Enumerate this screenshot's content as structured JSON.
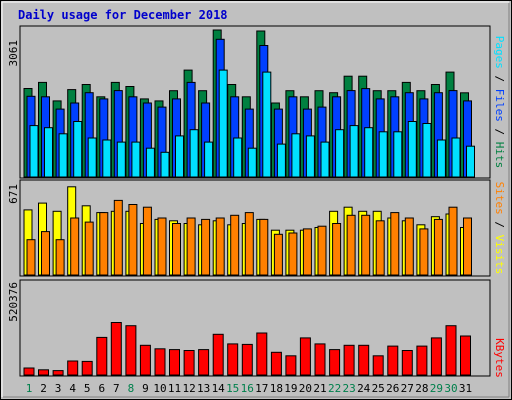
{
  "chart_data": {
    "type": "bar",
    "title": "Daily usage for December 2018",
    "categories": [
      "1",
      "2",
      "3",
      "4",
      "5",
      "6",
      "7",
      "8",
      "9",
      "10",
      "11",
      "12",
      "13",
      "14",
      "15",
      "16",
      "17",
      "18",
      "19",
      "20",
      "21",
      "22",
      "23",
      "24",
      "25",
      "26",
      "27",
      "28",
      "29",
      "30",
      "31"
    ],
    "weekend_days": [
      1,
      8,
      15,
      16,
      22,
      23,
      29,
      30
    ],
    "colors": {
      "hits": "#008040",
      "files": "#0040ff",
      "pages": "#00e0ff",
      "visits": "#ffff00",
      "sites": "#ff8000",
      "kbytes": "#ff0000",
      "title": "#0000cc",
      "weekday_label": "#000000",
      "weekend_label": "#00804c",
      "panel_bg": "#c0c0c0"
    },
    "panels": [
      {
        "id": "hits-files-pages",
        "ymax_label": "3061",
        "ylim": [
          0,
          3061
        ],
        "right_label": [
          {
            "text": "Pages",
            "color": "#00e0ff"
          },
          {
            "text": " / ",
            "color": "#000000"
          },
          {
            "text": "Files",
            "color": "#0040ff"
          },
          {
            "text": " / ",
            "color": "#000000"
          },
          {
            "text": "Hits",
            "color": "#008040"
          }
        ],
        "series": [
          {
            "name": "Hits",
            "color": "#008040",
            "values": [
              1843,
              1970,
              1584,
              1820,
              1927,
              1669,
              1970,
              1884,
              1627,
              1584,
              1798,
              2226,
              1798,
              3061,
              1926,
              1670,
              3040,
              1541,
              1798,
              1670,
              1798,
              1756,
              2098,
              2098,
              1798,
              1798,
              1970,
              1798,
              1927,
              2184,
              1754
            ]
          },
          {
            "name": "Files",
            "color": "#0040ff",
            "values": [
              1680,
              1670,
              1413,
              1541,
              1756,
              1627,
              1799,
              1669,
              1541,
              1456,
              1627,
              1970,
              1541,
              2868,
              1670,
              1413,
              2739,
              1413,
              1670,
              1413,
              1456,
              1670,
              1799,
              1841,
              1627,
              1670,
              1756,
              1627,
              1756,
              1799,
              1584
            ]
          },
          {
            "name": "Pages",
            "color": "#00e0ff",
            "values": [
              1070,
              1027,
              899,
              1156,
              813,
              770,
              727,
              727,
              599,
              514,
              856,
              984,
              727,
              2226,
              813,
              599,
              2184,
              685,
              899,
              856,
              727,
              984,
              1070,
              1027,
              942,
              942,
              1156,
              1113,
              770,
              813,
              642
            ]
          }
        ]
      },
      {
        "id": "visits-sites",
        "ymax_label": "671",
        "ylim": [
          0,
          671
        ],
        "right_label": [
          {
            "text": "Sites",
            "color": "#ff8000"
          },
          {
            "text": " / ",
            "color": "#000000"
          },
          {
            "text": "Visits",
            "color": "#ffff00"
          }
        ],
        "series": [
          {
            "name": "Visits",
            "color": "#ffff00",
            "values": [
              480,
              530,
              470,
              650,
              510,
              460,
              470,
              470,
              380,
              410,
              400,
              380,
              370,
              400,
              370,
              380,
              410,
              330,
              330,
              330,
              350,
              470,
              500,
              470,
              470,
              420,
              400,
              370,
              430,
              450,
              350
            ]
          },
          {
            "name": "Sites",
            "color": "#ff8000",
            "values": [
              260,
              320,
              260,
              420,
              390,
              460,
              550,
              520,
              500,
              420,
              380,
              420,
              410,
              420,
              440,
              460,
              410,
              300,
              310,
              340,
              360,
              380,
              440,
              440,
              400,
              460,
              420,
              340,
              410,
              500,
              420
            ]
          }
        ]
      },
      {
        "id": "kbytes",
        "ymax_label": "520376",
        "ylim": [
          0,
          520376
        ],
        "right_label": [
          {
            "text": "KBytes",
            "color": "#ff0000"
          }
        ],
        "series": [
          {
            "name": "KBytes",
            "color": "#ff0000",
            "values": [
              40000,
              30000,
              25000,
              80000,
              78000,
              215000,
              300000,
              282000,
              170000,
              150000,
              145000,
              140000,
              145000,
              233000,
              178000,
              175000,
              240000,
              130000,
              110000,
              212000,
              178000,
              145000,
              170000,
              170000,
              110000,
              165000,
              140000,
              165000,
              212000,
              282000,
              223000
            ]
          }
        ]
      }
    ]
  }
}
